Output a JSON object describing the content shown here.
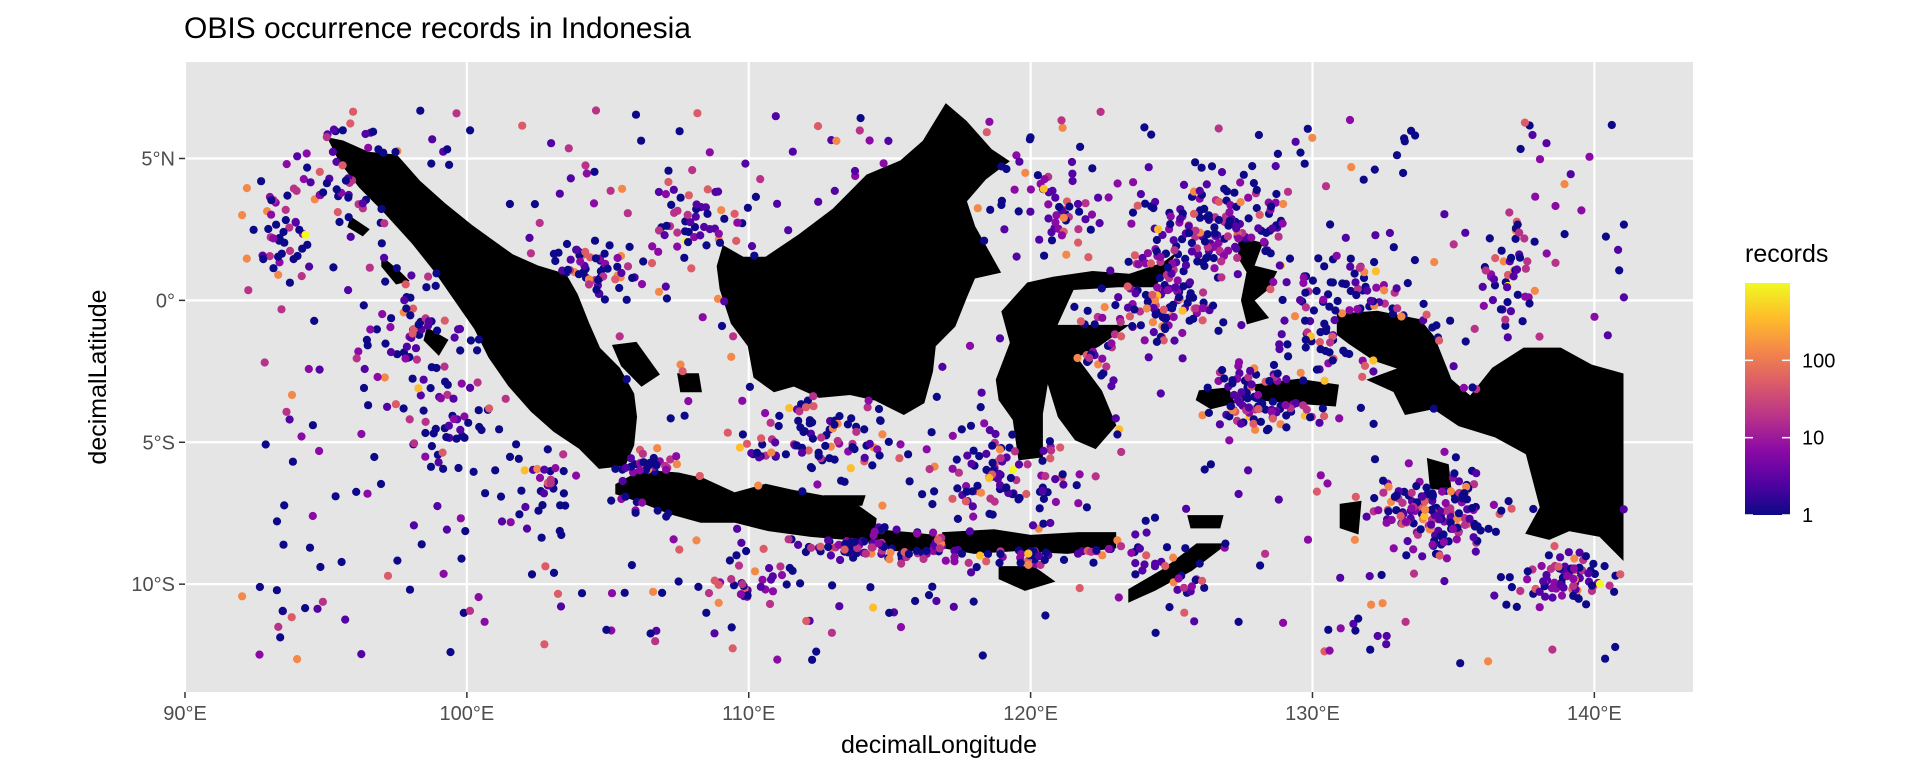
{
  "title": "OBIS occurrence records in Indonesia",
  "colors": {
    "panel_background": "#e5e5e5",
    "gridline": "#ffffff",
    "land": "#000000",
    "scale_low": "#0d0887",
    "scale_high": "#f0f921",
    "palette": [
      "#0d0887",
      "#5302a3",
      "#8b0aa5",
      "#b83289",
      "#db5c68",
      "#f48849",
      "#febd2a",
      "#f0f921"
    ]
  },
  "chart_data": {
    "type": "scatter",
    "subtype": "map",
    "xlabel": "decimalLongitude",
    "ylabel": "decimalLatitude",
    "xlim": [
      90,
      143.5
    ],
    "ylim": [
      -13.8,
      8.4
    ],
    "x_ticks": [
      90,
      100,
      110,
      120,
      130,
      140
    ],
    "x_tick_labels": [
      "90°E",
      "100°E",
      "110°E",
      "120°E",
      "130°E",
      "140°E"
    ],
    "y_ticks": [
      5,
      0,
      -5,
      -10
    ],
    "y_tick_labels": [
      "5°N",
      "0°",
      "5°S",
      "10°S"
    ],
    "grid": true,
    "legend": {
      "title": "records",
      "placement": "right",
      "scale": "log10",
      "range": [
        1,
        1000
      ],
      "breaks": [
        100,
        10,
        1
      ],
      "break_labels": [
        "100",
        "10",
        "1"
      ],
      "palette": "plasma"
    },
    "landmasses": [
      {
        "name": "Sumatra",
        "lonlat": [
          [
            95.1,
            5.7
          ],
          [
            95.6,
            5.6
          ],
          [
            96.5,
            5.2
          ],
          [
            97.5,
            5.1
          ],
          [
            98.3,
            4.2
          ],
          [
            99.2,
            3.4
          ],
          [
            100.2,
            2.6
          ],
          [
            100.9,
            2.1
          ],
          [
            101.6,
            1.6
          ],
          [
            102.5,
            1.2
          ],
          [
            103.5,
            0.9
          ],
          [
            103.9,
            0.2
          ],
          [
            104.3,
            -0.8
          ],
          [
            104.7,
            -1.7
          ],
          [
            105.4,
            -2.4
          ],
          [
            105.9,
            -3.3
          ],
          [
            106.0,
            -4.1
          ],
          [
            105.9,
            -5.1
          ],
          [
            105.6,
            -5.8
          ],
          [
            104.7,
            -5.9
          ],
          [
            104.0,
            -5.2
          ],
          [
            103.1,
            -4.6
          ],
          [
            102.3,
            -3.9
          ],
          [
            101.5,
            -3.0
          ],
          [
            100.8,
            -2.0
          ],
          [
            100.3,
            -1.0
          ],
          [
            99.6,
            0.0
          ],
          [
            98.9,
            1.0
          ],
          [
            98.1,
            2.0
          ],
          [
            97.1,
            3.1
          ],
          [
            96.2,
            4.0
          ],
          [
            95.5,
            4.9
          ]
        ]
      },
      {
        "name": "Java",
        "lonlat": [
          [
            105.3,
            -6.5
          ],
          [
            106.2,
            -6.0
          ],
          [
            107.5,
            -6.1
          ],
          [
            108.4,
            -6.3
          ],
          [
            109.5,
            -6.8
          ],
          [
            110.6,
            -6.5
          ],
          [
            111.5,
            -6.7
          ],
          [
            112.6,
            -6.9
          ],
          [
            113.8,
            -7.2
          ],
          [
            114.5,
            -7.7
          ],
          [
            114.4,
            -8.5
          ],
          [
            113.4,
            -8.4
          ],
          [
            112.2,
            -8.3
          ],
          [
            110.7,
            -8.1
          ],
          [
            109.5,
            -7.8
          ],
          [
            108.3,
            -7.8
          ],
          [
            107.2,
            -7.5
          ],
          [
            106.2,
            -7.1
          ],
          [
            105.3,
            -6.8
          ]
        ]
      },
      {
        "name": "Bali-Lombok",
        "lonlat": [
          [
            114.5,
            -8.1
          ],
          [
            115.7,
            -8.2
          ],
          [
            116.6,
            -8.3
          ],
          [
            116.5,
            -8.8
          ],
          [
            115.2,
            -8.8
          ],
          [
            114.5,
            -8.4
          ]
        ]
      },
      {
        "name": "Sumbawa-Flores",
        "lonlat": [
          [
            116.9,
            -8.2
          ],
          [
            118.7,
            -8.1
          ],
          [
            120.0,
            -8.3
          ],
          [
            121.7,
            -8.2
          ],
          [
            123.0,
            -8.2
          ],
          [
            123.0,
            -8.7
          ],
          [
            121.3,
            -8.9
          ],
          [
            119.5,
            -8.8
          ],
          [
            118.0,
            -8.9
          ],
          [
            116.9,
            -8.7
          ]
        ]
      },
      {
        "name": "Sumba",
        "lonlat": [
          [
            118.9,
            -9.4
          ],
          [
            120.1,
            -9.4
          ],
          [
            120.8,
            -9.9
          ],
          [
            119.8,
            -10.2
          ],
          [
            118.9,
            -9.8
          ]
        ]
      },
      {
        "name": "Timor",
        "lonlat": [
          [
            123.5,
            -10.2
          ],
          [
            124.7,
            -9.5
          ],
          [
            125.9,
            -8.6
          ],
          [
            126.9,
            -8.6
          ],
          [
            125.7,
            -9.5
          ],
          [
            124.4,
            -10.2
          ],
          [
            123.5,
            -10.6
          ]
        ]
      },
      {
        "name": "Borneo",
        "lonlat": [
          [
            109.1,
            1.9
          ],
          [
            109.8,
            1.5
          ],
          [
            110.6,
            1.5
          ],
          [
            111.8,
            2.3
          ],
          [
            113.0,
            3.2
          ],
          [
            114.2,
            4.4
          ],
          [
            115.4,
            4.9
          ],
          [
            116.2,
            5.6
          ],
          [
            117.0,
            6.9
          ],
          [
            117.7,
            6.3
          ],
          [
            118.6,
            5.3
          ],
          [
            119.2,
            4.9
          ],
          [
            118.4,
            4.3
          ],
          [
            117.7,
            3.5
          ],
          [
            118.0,
            2.6
          ],
          [
            118.9,
            1.0
          ],
          [
            118.0,
            0.8
          ],
          [
            117.7,
            0.1
          ],
          [
            117.3,
            -0.9
          ],
          [
            116.6,
            -1.6
          ],
          [
            116.5,
            -2.5
          ],
          [
            116.2,
            -3.6
          ],
          [
            115.5,
            -4.0
          ],
          [
            114.5,
            -3.5
          ],
          [
            113.6,
            -3.3
          ],
          [
            112.5,
            -3.4
          ],
          [
            111.6,
            -3.0
          ],
          [
            110.9,
            -3.2
          ],
          [
            110.2,
            -2.7
          ],
          [
            110.0,
            -1.6
          ],
          [
            109.4,
            -0.8
          ],
          [
            109.0,
            0.4
          ],
          [
            108.9,
            1.2
          ]
        ]
      },
      {
        "name": "Sulawesi",
        "lonlat": [
          [
            119.0,
            -0.4
          ],
          [
            119.9,
            0.6
          ],
          [
            120.8,
            0.8
          ],
          [
            122.2,
            1.0
          ],
          [
            123.5,
            0.9
          ],
          [
            124.7,
            1.3
          ],
          [
            125.1,
            1.6
          ],
          [
            124.4,
            0.5
          ],
          [
            123.1,
            0.5
          ],
          [
            121.5,
            0.4
          ],
          [
            120.9,
            -0.9
          ],
          [
            121.9,
            -0.9
          ],
          [
            123.4,
            -0.9
          ],
          [
            122.4,
            -1.6
          ],
          [
            121.6,
            -2.0
          ],
          [
            122.5,
            -3.2
          ],
          [
            123.0,
            -4.4
          ],
          [
            122.3,
            -5.2
          ],
          [
            121.6,
            -4.9
          ],
          [
            121.0,
            -4.1
          ],
          [
            120.6,
            -2.8
          ],
          [
            120.4,
            -4.0
          ],
          [
            120.4,
            -5.5
          ],
          [
            119.6,
            -5.6
          ],
          [
            119.4,
            -4.2
          ],
          [
            118.9,
            -3.5
          ],
          [
            118.8,
            -2.8
          ],
          [
            119.3,
            -1.5
          ]
        ]
      },
      {
        "name": "Halmahera",
        "lonlat": [
          [
            127.4,
            2.2
          ],
          [
            128.2,
            2.0
          ],
          [
            127.9,
            1.2
          ],
          [
            128.7,
            1.0
          ],
          [
            128.4,
            0.4
          ],
          [
            127.9,
            0.0
          ],
          [
            128.4,
            -0.6
          ],
          [
            127.7,
            -0.8
          ],
          [
            127.5,
            0.0
          ],
          [
            127.7,
            1.0
          ],
          [
            127.4,
            1.5
          ]
        ]
      },
      {
        "name": "Seram",
        "lonlat": [
          [
            127.9,
            -3.0
          ],
          [
            129.5,
            -2.8
          ],
          [
            130.9,
            -3.0
          ],
          [
            130.8,
            -3.7
          ],
          [
            129.3,
            -3.6
          ],
          [
            128.2,
            -3.5
          ]
        ]
      },
      {
        "name": "Buru",
        "lonlat": [
          [
            126.0,
            -3.2
          ],
          [
            127.0,
            -3.1
          ],
          [
            127.2,
            -3.6
          ],
          [
            126.4,
            -3.8
          ],
          [
            125.9,
            -3.5
          ]
        ]
      },
      {
        "name": "Bangka",
        "lonlat": [
          [
            105.2,
            -1.6
          ],
          [
            106.0,
            -1.5
          ],
          [
            106.8,
            -2.6
          ],
          [
            106.2,
            -3.0
          ],
          [
            105.5,
            -2.3
          ]
        ]
      },
      {
        "name": "Belitung",
        "lonlat": [
          [
            107.5,
            -2.6
          ],
          [
            108.2,
            -2.6
          ],
          [
            108.3,
            -3.2
          ],
          [
            107.6,
            -3.2
          ]
        ]
      },
      {
        "name": "New Guinea",
        "lonlat": [
          [
            130.9,
            -0.5
          ],
          [
            132.3,
            -0.4
          ],
          [
            133.8,
            -0.7
          ],
          [
            134.3,
            -1.3
          ],
          [
            134.9,
            -2.8
          ],
          [
            135.6,
            -3.4
          ],
          [
            136.4,
            -2.4
          ],
          [
            137.5,
            -1.7
          ],
          [
            138.8,
            -1.7
          ],
          [
            139.9,
            -2.3
          ],
          [
            141.0,
            -2.6
          ],
          [
            141.0,
            -9.1
          ],
          [
            140.2,
            -8.3
          ],
          [
            139.1,
            -8.1
          ],
          [
            138.4,
            -8.4
          ],
          [
            137.6,
            -8.2
          ],
          [
            138.1,
            -7.3
          ],
          [
            137.6,
            -5.4
          ],
          [
            136.5,
            -4.8
          ],
          [
            135.2,
            -4.4
          ],
          [
            134.3,
            -3.8
          ],
          [
            133.3,
            -4.0
          ],
          [
            132.9,
            -3.2
          ],
          [
            132.0,
            -2.8
          ],
          [
            133.1,
            -2.4
          ],
          [
            132.2,
            -2.1
          ],
          [
            131.3,
            -1.5
          ],
          [
            130.9,
            -1.2
          ]
        ]
      },
      {
        "name": "Nias",
        "lonlat": [
          [
            97.0,
            1.5
          ],
          [
            97.6,
            1.0
          ],
          [
            97.9,
            0.7
          ],
          [
            97.5,
            0.6
          ],
          [
            97.0,
            1.2
          ]
        ]
      },
      {
        "name": "Siberut",
        "lonlat": [
          [
            98.6,
            -1.0
          ],
          [
            99.3,
            -1.4
          ],
          [
            99.0,
            -1.9
          ],
          [
            98.5,
            -1.4
          ]
        ]
      },
      {
        "name": "Simeulue",
        "lonlat": [
          [
            95.9,
            2.9
          ],
          [
            96.5,
            2.5
          ],
          [
            96.3,
            2.3
          ],
          [
            95.8,
            2.6
          ]
        ]
      },
      {
        "name": "Madura",
        "lonlat": [
          [
            112.7,
            -6.9
          ],
          [
            114.1,
            -6.9
          ],
          [
            114.0,
            -7.2
          ],
          [
            112.8,
            -7.2
          ]
        ]
      },
      {
        "name": "Wetar",
        "lonlat": [
          [
            125.6,
            -7.6
          ],
          [
            126.8,
            -7.6
          ],
          [
            126.7,
            -8.0
          ],
          [
            125.7,
            -8.0
          ]
        ]
      },
      {
        "name": "Aru",
        "lonlat": [
          [
            134.1,
            -5.6
          ],
          [
            134.8,
            -5.8
          ],
          [
            134.9,
            -6.7
          ],
          [
            134.2,
            -6.6
          ]
        ]
      },
      {
        "name": "Yamdena",
        "lonlat": [
          [
            131.0,
            -7.2
          ],
          [
            131.7,
            -7.1
          ],
          [
            131.6,
            -8.2
          ],
          [
            131.0,
            -8.0
          ]
        ]
      }
    ]
  }
}
